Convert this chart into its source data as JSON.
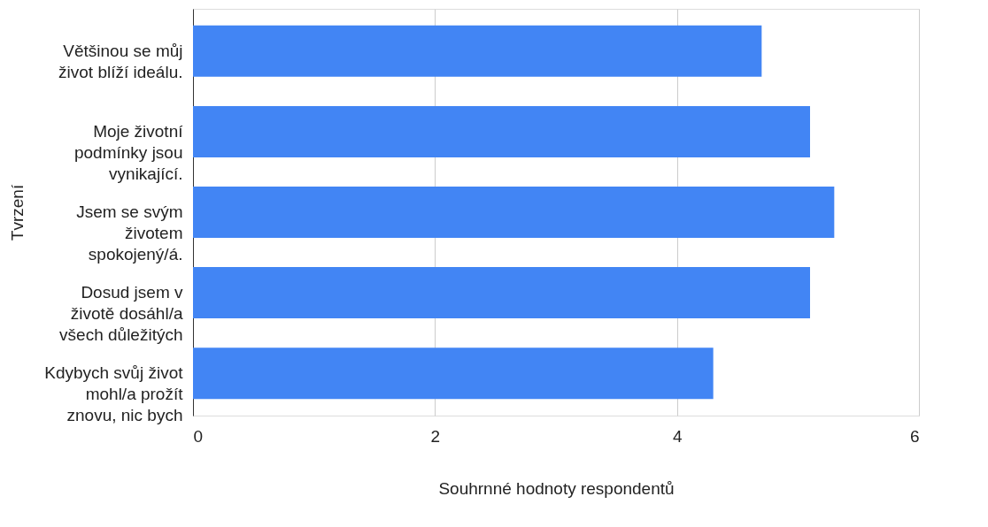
{
  "chart_data": {
    "type": "bar",
    "orientation": "horizontal",
    "categories": [
      "Většinou se můj\nživot blíží ideálu.",
      "Moje životní\npodmínky jsou\nvynikající.",
      "Jsem se svým\nživotem\nspokojený/á.",
      "Dosud jsem v\nživotě dosáhl/a\nvšech důležitých",
      "Kdybych svůj život\nmohl/a prožít\nznovu, nic bych"
    ],
    "values": [
      4.7,
      5.1,
      5.3,
      5.1,
      4.3
    ],
    "color": "#4285f4",
    "xlim": [
      0,
      6
    ],
    "xticks": [
      0,
      2,
      4,
      6
    ],
    "xlabel": "Souhrnné hodnoty respondentů",
    "ylabel": "Tvrzení",
    "grid": "x"
  }
}
